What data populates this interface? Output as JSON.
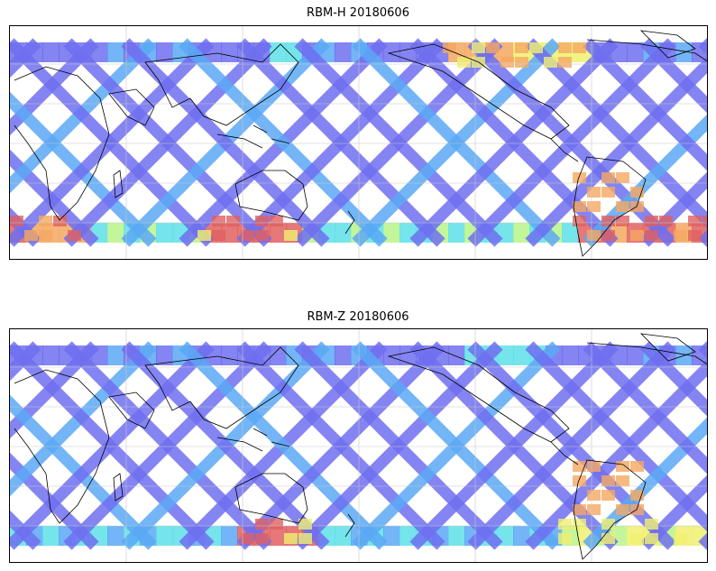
{
  "panels": [
    {
      "id": "top",
      "title": "RBM-H 20180606",
      "variant": "H"
    },
    {
      "id": "bottom",
      "title": "RBM-Z 20180606",
      "variant": "Z"
    }
  ],
  "colors": {
    "low": "#6f6ff0",
    "mid_low": "#5aa8f5",
    "mid": "#5ee0e8",
    "mid_high": "#b8f58a",
    "high_yellow": "#f0f070",
    "high_orange": "#f5a860",
    "very_high": "#e06060",
    "coast": "#000000",
    "grid": "#c8c8c8"
  }
}
